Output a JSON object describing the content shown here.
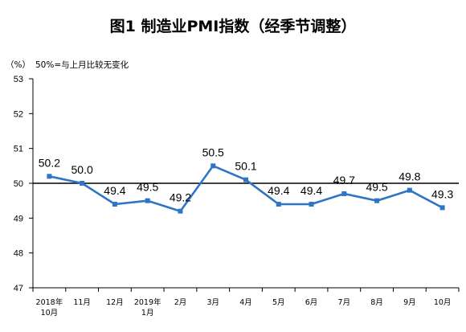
{
  "chart_data": {
    "type": "line",
    "title": "图1  制造业PMI指数（经季节调整）",
    "unit_label": "（%）",
    "reference_note": "50%=与上月比较无变化",
    "categories": [
      [
        "2018年",
        "10月"
      ],
      [
        "11月"
      ],
      [
        "12月"
      ],
      [
        "2019年",
        "1月"
      ],
      [
        "2月"
      ],
      [
        "3月"
      ],
      [
        "4月"
      ],
      [
        "5月"
      ],
      [
        "6月"
      ],
      [
        "7月"
      ],
      [
        "8月"
      ],
      [
        "9月"
      ],
      [
        "10月"
      ]
    ],
    "values": [
      50.2,
      50.0,
      49.4,
      49.5,
      49.2,
      50.5,
      50.1,
      49.4,
      49.4,
      49.7,
      49.5,
      49.8,
      49.3
    ],
    "value_labels": [
      "50.2",
      "50.0",
      "49.4",
      "49.5",
      "49.2",
      "50.5",
      "50.1",
      "49.4",
      "49.4",
      "49.7",
      "49.5",
      "49.8",
      "49.3"
    ],
    "yticks": [
      47,
      48,
      49,
      50,
      51,
      52,
      53
    ],
    "ylim": [
      47,
      53
    ],
    "reference_value": 50,
    "grid": false,
    "colors": {
      "line": "#2E75C6",
      "axis": "#000000",
      "reference": "#000000"
    }
  }
}
